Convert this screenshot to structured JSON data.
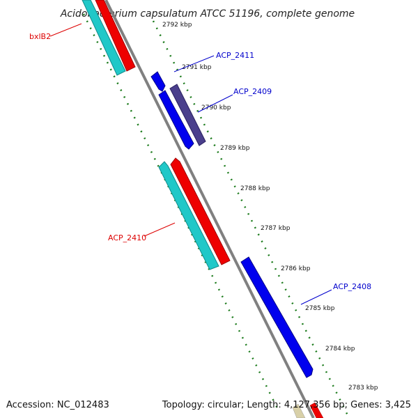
{
  "title": "Acidobacterium capsulatum ATCC 51196, complete genome",
  "accession": "Accession: NC_012483",
  "topology": "Topology: circular; Length: 4,127,356 bp; Genes: 3,425",
  "colors": {
    "backbone": "#808080",
    "forward_cds": "#0000ee",
    "reverse_cds": "#ee0000",
    "rna": "#20c8c8",
    "selected": "#4a3f8c",
    "tick": "#1a7a1a",
    "label_red": "#dd0000",
    "label_blue": "#0000cc"
  },
  "ticks": [
    "2792 kbp",
    "2791 kbp",
    "2790 kbp",
    "2789 kbp",
    "2788 kbp",
    "2787 kbp",
    "2786 kbp",
    "2785 kbp",
    "2784 kbp",
    "2783 kbp"
  ],
  "labels": {
    "bxlB2": "bxlB2",
    "acp2411": "ACP_2411",
    "acp2409": "ACP_2409",
    "acp2410": "ACP_2410",
    "acp2408": "ACP_2408"
  }
}
